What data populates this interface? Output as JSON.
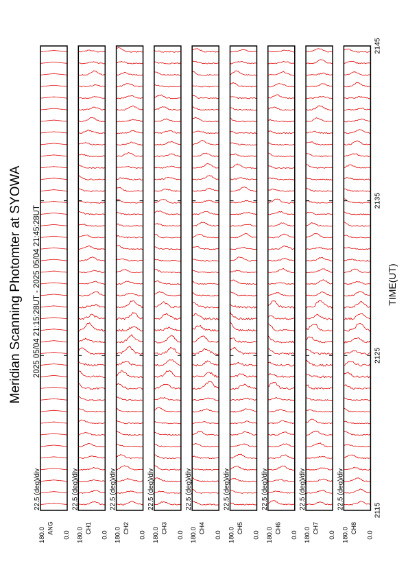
{
  "title": "Meridian Scanning Photomter at SYOWA",
  "time_range": "2025 05/04 21:15:28UT - 2025 05/04 21:45:28UT",
  "xlabel": "TIME(UT)",
  "scale_label": "22.5 (deg)/div",
  "colors": {
    "trace": "#e00000",
    "frame": "#000000",
    "background": "#ffffff"
  },
  "chart_data": {
    "type": "line",
    "title": "Meridian Scanning Photomter at SYOWA",
    "xlabel": "TIME(UT)",
    "x_ticks": [
      "2115",
      "2125",
      "2135",
      "2145"
    ],
    "xlim": [
      "2115",
      "2145"
    ],
    "ylim": [
      0.0,
      180.0
    ],
    "y_tick_labels": [
      "0.0",
      "180.0"
    ],
    "grid": false,
    "orientation": "rotated-90-ccw",
    "panels": [
      {
        "channel": "ANG",
        "ylim": [
          0.0,
          180.0
        ],
        "traces": 40
      },
      {
        "channel": "CH1",
        "ylim": [
          0.0,
          180.0
        ],
        "traces": 40
      },
      {
        "channel": "CH2",
        "ylim": [
          0.0,
          180.0
        ],
        "traces": 40
      },
      {
        "channel": "CH3",
        "ylim": [
          0.0,
          180.0
        ],
        "traces": 40
      },
      {
        "channel": "CH4",
        "ylim": [
          0.0,
          180.0
        ],
        "traces": 40
      },
      {
        "channel": "CH5",
        "ylim": [
          0.0,
          180.0
        ],
        "traces": 40
      },
      {
        "channel": "CH6",
        "ylim": [
          0.0,
          180.0
        ],
        "traces": 40
      },
      {
        "channel": "CH7",
        "ylim": [
          0.0,
          180.0
        ],
        "traces": 40
      },
      {
        "channel": "CH8",
        "ylim": [
          0.0,
          180.0
        ],
        "traces": 40
      }
    ]
  }
}
